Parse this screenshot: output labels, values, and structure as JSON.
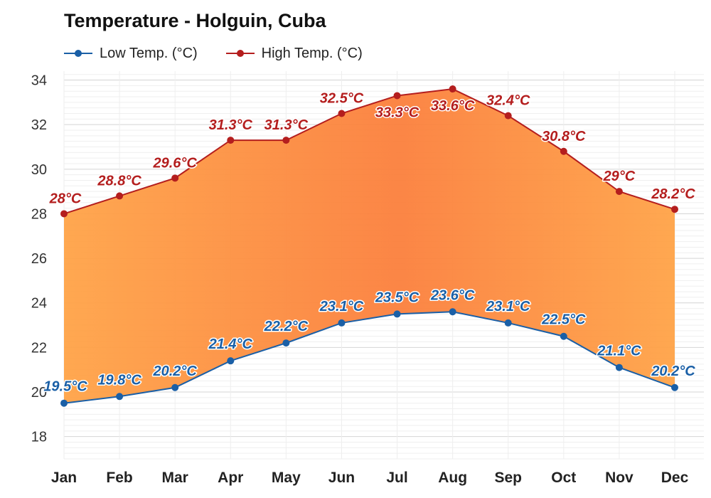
{
  "title": "Temperature - Holguin, Cuba",
  "legend": {
    "low_label": "Low Temp. (°C)",
    "high_label": "High Temp. (°C)"
  },
  "colors": {
    "low": "#1a5fa6",
    "high": "#b41e1e",
    "fill_light": "#ffa347",
    "fill_dark": "#fb7f3c"
  },
  "chart_data": {
    "type": "area",
    "title": "Temperature - Holguin, Cuba",
    "xlabel": "",
    "ylabel": "",
    "categories": [
      "Jan",
      "Feb",
      "Mar",
      "Apr",
      "May",
      "Jun",
      "Jul",
      "Aug",
      "Sep",
      "Oct",
      "Nov",
      "Dec"
    ],
    "ylim": [
      17,
      34.4
    ],
    "yticks": [
      18,
      20,
      22,
      24,
      26,
      28,
      30,
      32,
      34
    ],
    "grid": true,
    "legend_position": "top-left",
    "series": [
      {
        "name": "Low Temp. (°C)",
        "values": [
          19.5,
          19.8,
          20.2,
          21.4,
          22.2,
          23.1,
          23.5,
          23.6,
          23.1,
          22.5,
          21.1,
          20.2
        ],
        "labels": [
          "19.5°C",
          "19.8°C",
          "20.2°C",
          "21.4°C",
          "22.2°C",
          "23.1°C",
          "23.5°C",
          "23.6°C",
          "23.1°C",
          "22.5°C",
          "21.1°C",
          "20.2°C"
        ]
      },
      {
        "name": "High Temp. (°C)",
        "values": [
          28,
          28.8,
          29.6,
          31.3,
          31.3,
          32.5,
          33.3,
          33.6,
          32.4,
          30.8,
          29,
          28.2
        ],
        "labels": [
          "28°C",
          "28.8°C",
          "29.6°C",
          "31.3°C",
          "31.3°C",
          "32.5°C",
          "33.3°C",
          "33.6°C",
          "32.4°C",
          "30.8°C",
          "29°C",
          "28.2°C"
        ]
      }
    ]
  }
}
